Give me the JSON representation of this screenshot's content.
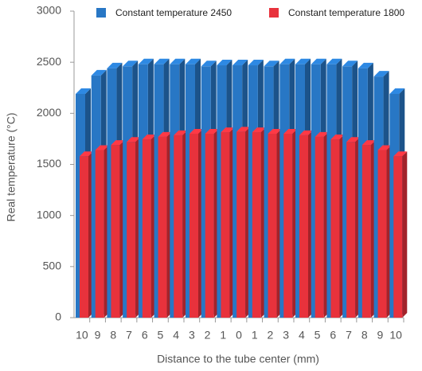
{
  "chart_data": {
    "type": "bar3d",
    "x_label": "Distance to the tube center (mm)",
    "y_label": "Real temperature (°C)",
    "categories": [
      "10",
      "9",
      "8",
      "7",
      "6",
      "5",
      "4",
      "3",
      "2",
      "1",
      "0",
      "1",
      "2",
      "3",
      "4",
      "5",
      "6",
      "7",
      "8",
      "9",
      "10"
    ],
    "series": [
      {
        "name": "Constant temperature 2450",
        "color": "#2877c5",
        "values": [
          2190,
          2370,
          2440,
          2460,
          2480,
          2480,
          2480,
          2480,
          2460,
          2470,
          2470,
          2470,
          2460,
          2480,
          2480,
          2480,
          2480,
          2460,
          2440,
          2360,
          2190
        ]
      },
      {
        "name": "Constant temperature 1800",
        "color": "#e8323c",
        "values": [
          1580,
          1640,
          1690,
          1720,
          1745,
          1770,
          1785,
          1800,
          1800,
          1815,
          1820,
          1815,
          1800,
          1800,
          1785,
          1770,
          1745,
          1720,
          1690,
          1640,
          1580
        ]
      }
    ],
    "ylim": [
      0,
      3000
    ],
    "yticks": [
      0,
      500,
      1000,
      1500,
      2000,
      2500,
      3000
    ],
    "legend": "top"
  }
}
